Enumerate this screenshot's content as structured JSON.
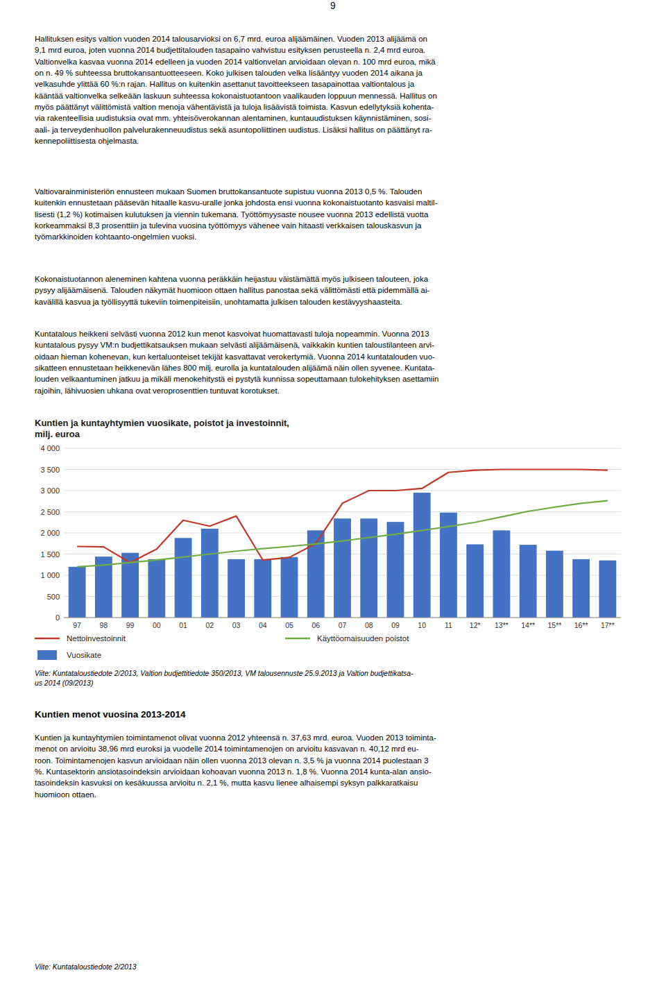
{
  "page_number": "9",
  "main_text": "Hallituksen esitys valtion vuoden 2014 talousarvioksi on 6,7 mrd. euroa alijäämäinen. Vuoden 2013 alijäämä on\n9,1 mrd euroa, joten vuonna 2014 budjettitalouden tasapaino vahvistuu esityksen perusteella n. 2,4 mrd euroa.\nValtionvelka kasvaa vuonna 2014 edelleen ja vuoden 2014 valtionvelan arvioidaan olevan n. 100 mrd euroa, mikä\non n. 49 % suhteessa bruttokansantuotteeseen. Koko julkisen talouden velka lisääntyy vuoden 2014 aikana ja\nvelkasuhde ylittää 60 %:n rajan. Hallitus on kuitenkin asettanut tavoitteekseen tasapainottaa valtiontalous ja\nkääntää valtionvelka selkeään laskuun suhteessa kokonaistuotantoon vaalikauden loppuun mennessä. Hallitus on\nmyös päättänyt välittömistä valtion menoja vähentävistä ja tuloja lisäävistä toimista. Kasvun edellytyksiä kohenta-\nvia rakenteellisia uudistuksia ovat mm. yhteisöverokannan alentaminen, kuntauudistuksen käynnistäminen, sosi-\naali- ja terveydenhuollon palvelurakenneuudistus sekä asuntopoliittinen uudistus. Lisäksi hallitus on päättänyt ra-\nkennepoliittisesta ohjelmasta.",
  "middle_text": "Valtiovarainministeriön ennusteen mukaan Suomen bruttokansantuote supistuu vuonna 2013 0,5 %. Talouden\nkuitenkin ennustetaan pääsevän hitaalle kasvu-uralle jonka johdosta ensi vuonna kokonaistuotanto kasvaisi maltil-\nlisesti (1,2 %) kotimaisen kulutuksen ja viennin tukemana. Työttömyysaste nousee vuonna 2013 edellistä vuotta\nkorkeammaksi 8,3 prosenttiin ja tulevina vuosina työttömyys vähenee vain hitaasti verkkaisen talouskasvun ja\ntyömarkkinoiden kohtaanto-ongelmien vuoksi.",
  "third_text": "Kokonaistuotannon aleneminen kahtena vuonna peräkkäin heijastuu väistämättä myös julkiseen talouteen, joka\npysyy alijäämäisenä. Talouden näkymät huomioon ottaen hallitus panostaa sekä välittömästi että pidemmällä ai-\nkavälillä kasvua ja työllisyyttä tukeviin toimenpiteisiin, unohtamatta julkisen talouden kestävyyshaasteita.",
  "fourth_text": "Kuntatalous heikkeni selvästi vuonna 2012 kun menot kasvoivat huomattavasti tuloja nopeammin. Vuonna 2013\nkuntatalous pysyy VM:n budjettikatsauksen mukaan selvästi alijäämäisenä, vaikkakin kuntien taloustilanteen arvi-\noidaan hieman kohenevan, kun kertaluonteiset tekijät kasvattavat verokertymiä. Vuonna 2014 kuntatalouden vuo-\nsikatteen ennustetaan heikkenevän lähes 800 milj. eurolla ja kuntatalouden alijäämä näin ollen syvenee. Kuntata-\nlouden velkaantuminen jatkuu ja mikäli menokehitystä ei pystytä kunnissa sopeuttamaan tulokehityksen asettamiin\nrajoihin, lähivuosien uhkana ovat veroprosenttien tuntuvat korotukset.",
  "note_1": "Viite: Kuntataloustiedote 2/2013, Valtion budjettitiedote 350/2013, VM talousennuste 25.9.2013 ja Valtion budjettikatsa-\nus 2014 (09/2013)",
  "heading": "Kuntien menot vuosina 2013-2014",
  "fifth_text": "Kuntien ja kuntayhtymien toimintamenot olivat vuonna 2012 yhteensä n. 37,63 mrd. euroa. Vuoden 2013 toiminta-\nmenot on arvioitu 38,96 mrd euroksi ja vuodelle 2014 toimintamenojen on arvioitu kasvavan n. 40,12 mrd eu-\nroon. Toimintamenojen kasvun arvioidaan näin ollen vuonna 2013 olevan n. 3,5 % ja vuonna 2014 puolestaan 3\n%. Kuntasektorin ansiotasoindeksin arvioidaan kohoavan vuonna 2013 n. 1,8 %. Vuonna 2014 kunta-alan ansio-\ntasoindeksin kasvuksi on kesäkuussa arvioitu n. 2,1 %, mutta kasvu lienee alhaisempi syksyn palkkaratkaisu\nhuomioon ottaen.",
  "note_2": "Viite: Kuntataloustiedote 2/2013",
  "chart_data": {
    "type": "bar",
    "title": "Kuntien ja kuntayhtymien vuosikate, poistot ja investoinnit,\nmilj. euroa",
    "categories": [
      "97",
      "98",
      "99",
      "00",
      "01",
      "02",
      "03",
      "04",
      "05",
      "06",
      "07",
      "08",
      "09",
      "10",
      "11",
      "12*",
      "13**",
      "14**",
      "15**",
      "16**",
      "17**"
    ],
    "series": [
      {
        "name": "Vuosikate",
        "type": "bar",
        "color": "#4472c4",
        "values": [
          1200,
          1440,
          1530,
          1380,
          1880,
          2100,
          1380,
          1380,
          1430,
          2060,
          2340,
          2340,
          2260,
          2950,
          2480,
          1730,
          2060,
          1720,
          1580,
          1380,
          1350
        ]
      },
      {
        "name": "Nettoinvestoinnit",
        "type": "line",
        "color": "#c0392b",
        "values": [
          1680,
          1670,
          1300,
          1620,
          2300,
          2160,
          2400,
          1360,
          1420,
          1750,
          2700,
          3000,
          3000,
          3050,
          3430,
          3480,
          3500,
          3500,
          3500,
          3500,
          3480
        ]
      },
      {
        "name": "Käyttöomaisuuden poistot",
        "type": "line",
        "color": "#70ad47",
        "values": [
          1200,
          1240,
          1300,
          1360,
          1430,
          1500,
          1570,
          1630,
          1680,
          1740,
          1810,
          1890,
          1970,
          2060,
          2150,
          2250,
          2380,
          2510,
          2610,
          2700,
          2760
        ]
      }
    ],
    "ylim": [
      0,
      4000
    ],
    "yticks": [
      0,
      500,
      {
        "value": 1000,
        "label": "1 000"
      },
      {
        "value": 1500,
        "label": "1 500"
      },
      {
        "value": 2000,
        "label": "2 000"
      },
      {
        "value": 2500,
        "label": "2 500"
      },
      {
        "value": 3000,
        "label": "3 000"
      },
      {
        "value": 3500,
        "label": "3 500"
      },
      {
        "value": 4000,
        "label": "4 000"
      }
    ],
    "grid": true
  }
}
